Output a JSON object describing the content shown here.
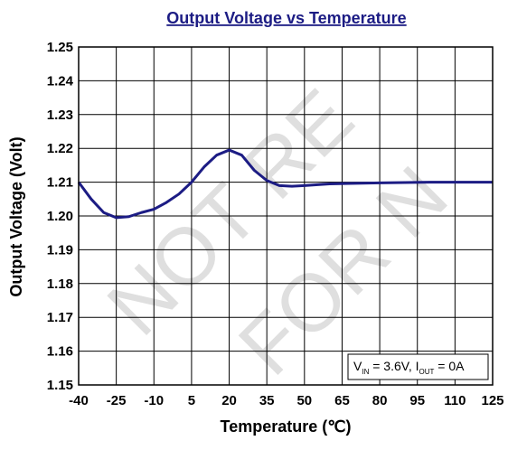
{
  "chart_data": {
    "type": "line",
    "title": "Output Voltage vs Temperature",
    "x_label": "Temperature (℃)",
    "y_label": "Output Voltage (Volt)",
    "annotation": [
      "V",
      "IN",
      " = 3.6V, I",
      "OUT",
      " = 0A"
    ],
    "watermark": [
      "NOT RE",
      "FOR N"
    ],
    "x": [
      -40,
      -35,
      -30,
      -25,
      -20,
      -15,
      -10,
      -5,
      0,
      5,
      10,
      15,
      20,
      25,
      30,
      35,
      40,
      45,
      50,
      60,
      80,
      100,
      125
    ],
    "series": [
      {
        "name": "Output Voltage",
        "color": "#1c1c84",
        "values": [
          1.21,
          1.205,
          1.201,
          1.1995,
          1.1998,
          1.201,
          1.202,
          1.204,
          1.2065,
          1.21,
          1.2145,
          1.218,
          1.2195,
          1.218,
          1.2135,
          1.2105,
          1.209,
          1.2088,
          1.209,
          1.2095,
          1.2098,
          1.21,
          1.21
        ]
      }
    ],
    "xlim": [
      -40,
      125
    ],
    "xticks": [
      -40,
      -25,
      -10,
      5,
      20,
      35,
      50,
      65,
      80,
      95,
      110,
      125
    ],
    "ylim": [
      1.15,
      1.25
    ],
    "yticks": [
      1.15,
      1.16,
      1.17,
      1.18,
      1.19,
      {
        "value": 1.2,
        "label": "1.20"
      },
      1.21,
      1.22,
      1.23,
      1.24,
      1.25
    ],
    "grid": true
  }
}
